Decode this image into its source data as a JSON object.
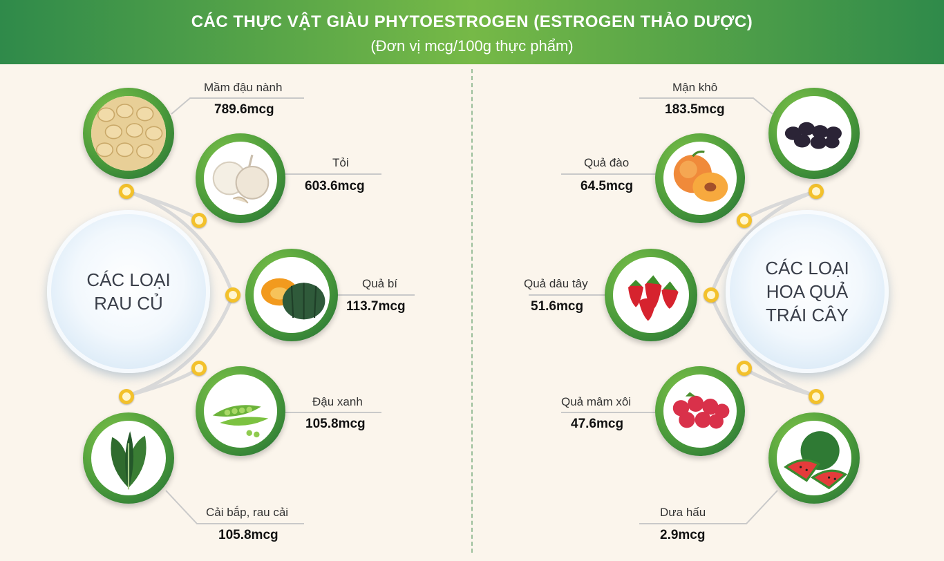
{
  "header": {
    "title": "CÁC  THỰC VẬT GIÀU PHYTOESTROGEN (ESTROGEN THẢO DƯỢC)",
    "subtitle": "(Đơn vị mcg/100g thực phẩm)"
  },
  "left": {
    "hub_label": "CÁC LOẠI\nRAU CỦ",
    "items": [
      {
        "name": "Mầm đậu nành",
        "value": "789.6mcg",
        "icon": "soybean-icon"
      },
      {
        "name": "Tỏi",
        "value": "603.6mcg",
        "icon": "garlic-icon"
      },
      {
        "name": "Quả bí",
        "value": "113.7mcg",
        "icon": "pumpkin-icon"
      },
      {
        "name": "Đậu xanh",
        "value": "105.8mcg",
        "icon": "green-pea-icon"
      },
      {
        "name": "Cải bắp, rau cải",
        "value": "105.8mcg",
        "icon": "leafy-greens-icon"
      }
    ]
  },
  "right": {
    "hub_label": "CÁC LOẠI\nHOA QUẢ\nTRÁI CÂY",
    "items": [
      {
        "name": "Mận khô",
        "value": "183.5mcg",
        "icon": "prune-icon"
      },
      {
        "name": "Quả đào",
        "value": "64.5mcg",
        "icon": "peach-icon"
      },
      {
        "name": "Quả dâu tây",
        "value": "51.6mcg",
        "icon": "strawberry-icon"
      },
      {
        "name": "Quả mâm xôi",
        "value": "47.6mcg",
        "icon": "raspberry-icon"
      },
      {
        "name": "Dưa hấu",
        "value": "2.9mcg",
        "icon": "watermelon-icon"
      }
    ]
  },
  "colors": {
    "header_green": "#3d9a4a",
    "ring_green": "#4a9a3a",
    "node_yellow": "#f3c12b",
    "background": "#fbf5ec"
  }
}
